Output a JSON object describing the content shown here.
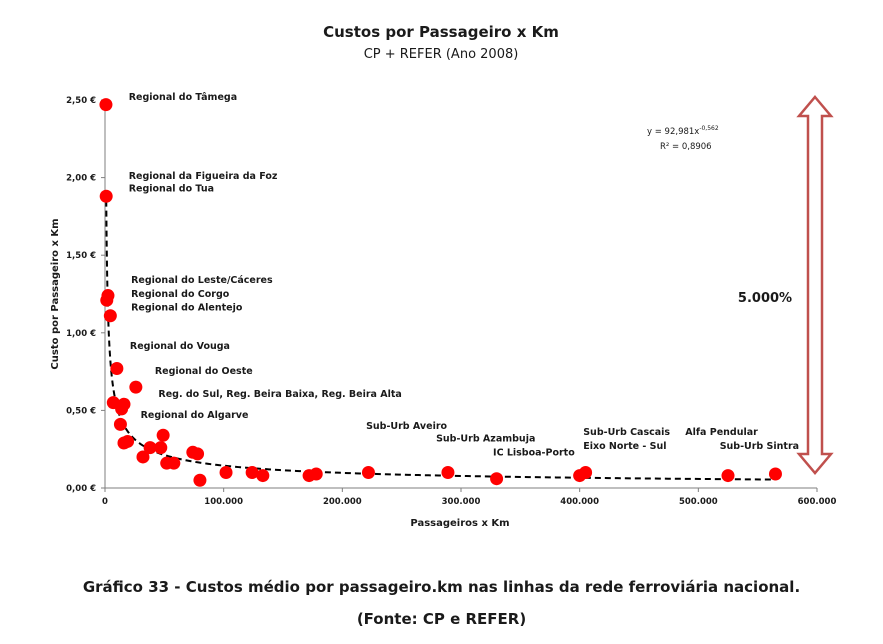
{
  "chart_data": {
    "type": "scatter",
    "title": "Custos por Passageiro x Km",
    "subtitle": "CP + REFER (Ano 2008)",
    "xlabel": "Passageiros x Km",
    "ylabel": "Custo por Passageiro x Km",
    "xlim": [
      0,
      600000
    ],
    "ylim": [
      0,
      2.5
    ],
    "x_ticks": [
      0,
      100000,
      200000,
      300000,
      400000,
      500000,
      600000
    ],
    "x_tick_labels": [
      "0",
      "100.000",
      "200.000",
      "300.000",
      "400.000",
      "500.000",
      "600.000"
    ],
    "y_ticks": [
      0,
      0.5,
      1.0,
      1.5,
      2.0,
      2.5
    ],
    "y_tick_labels": [
      "0,00 €",
      "0,50 €",
      "1,00 €",
      "1,50 €",
      "2,00 €",
      "2,50 €"
    ],
    "grid": false,
    "legend": "none",
    "point_color": "#ff0000",
    "points": [
      {
        "x": 800,
        "y": 2.47
      },
      {
        "x": 1000,
        "y": 1.88
      },
      {
        "x": 2500,
        "y": 1.24
      },
      {
        "x": 1500,
        "y": 1.21
      },
      {
        "x": 4500,
        "y": 1.11
      },
      {
        "x": 10000,
        "y": 0.77
      },
      {
        "x": 26000,
        "y": 0.65
      },
      {
        "x": 7000,
        "y": 0.55
      },
      {
        "x": 16000,
        "y": 0.54
      },
      {
        "x": 14000,
        "y": 0.51
      },
      {
        "x": 13000,
        "y": 0.41
      },
      {
        "x": 16000,
        "y": 0.29
      },
      {
        "x": 19000,
        "y": 0.3
      },
      {
        "x": 32000,
        "y": 0.2
      },
      {
        "x": 38000,
        "y": 0.26
      },
      {
        "x": 47000,
        "y": 0.26
      },
      {
        "x": 49000,
        "y": 0.34
      },
      {
        "x": 52000,
        "y": 0.16
      },
      {
        "x": 58000,
        "y": 0.16
      },
      {
        "x": 74000,
        "y": 0.23
      },
      {
        "x": 78000,
        "y": 0.22
      },
      {
        "x": 80000,
        "y": 0.05
      },
      {
        "x": 102000,
        "y": 0.1
      },
      {
        "x": 124000,
        "y": 0.1
      },
      {
        "x": 133000,
        "y": 0.08
      },
      {
        "x": 172000,
        "y": 0.08
      },
      {
        "x": 178000,
        "y": 0.09
      },
      {
        "x": 222000,
        "y": 0.1
      },
      {
        "x": 289000,
        "y": 0.1
      },
      {
        "x": 330000,
        "y": 0.06
      },
      {
        "x": 400000,
        "y": 0.08
      },
      {
        "x": 405000,
        "y": 0.1
      },
      {
        "x": 525000,
        "y": 0.08
      },
      {
        "x": 565000,
        "y": 0.09
      }
    ],
    "trendline": {
      "type": "power",
      "a": 92.981,
      "b": -0.562,
      "equation": "y = 92,981x",
      "exponent": "-0,562",
      "r2": "R² = 0,8906"
    },
    "point_labels": [
      {
        "text": "Regional do Tâmega",
        "x": 20000,
        "y": 2.5
      },
      {
        "text": "Regional da Figueira da Foz",
        "x": 20000,
        "y": 1.99
      },
      {
        "text": "Regional do Tua",
        "x": 20000,
        "y": 1.91
      },
      {
        "text": "Regional do Leste/Cáceres",
        "x": 22000,
        "y": 1.32
      },
      {
        "text": "Regional do Corgo",
        "x": 22000,
        "y": 1.23
      },
      {
        "text": "Regional do Alentejo",
        "x": 22000,
        "y": 1.145
      },
      {
        "text": "Regional do Vouga",
        "x": 21000,
        "y": 0.895
      },
      {
        "text": "Regional do Oeste",
        "x": 42000,
        "y": 0.735
      },
      {
        "text": "Reg. do Sul, Reg. Beira Baixa, Reg. Beira Alta",
        "x": 45000,
        "y": 0.585
      },
      {
        "text": "Regional do Algarve",
        "x": 30000,
        "y": 0.45
      },
      {
        "text": "Sub-Urb Aveiro",
        "x": 220000,
        "y": 0.38
      },
      {
        "text": "Sub-Urb Azambuja",
        "x": 279000,
        "y": 0.3
      },
      {
        "text": "IC Lisboa-Porto",
        "x": 327000,
        "y": 0.21
      },
      {
        "text": "Sub-Urb Cascais",
        "x": 403000,
        "y": 0.34
      },
      {
        "text": "Eixo Norte - Sul",
        "x": 403000,
        "y": 0.25
      },
      {
        "text": "Alfa Pendular",
        "x": 489000,
        "y": 0.34
      },
      {
        "text": "Sub-Urb Sintra",
        "x": 518000,
        "y": 0.25
      }
    ],
    "annotation": {
      "text": "5.000%",
      "arrow": "double-headed vertical",
      "arrow_from": 0.09,
      "arrow_to": 2.47,
      "arrow_color": "#c0504d"
    }
  },
  "caption": {
    "line1": "Gráfico 33 - Custos médio por passageiro.km nas linhas da rede ferroviária nacional.",
    "line2": "(Fonte: CP e REFER)"
  }
}
